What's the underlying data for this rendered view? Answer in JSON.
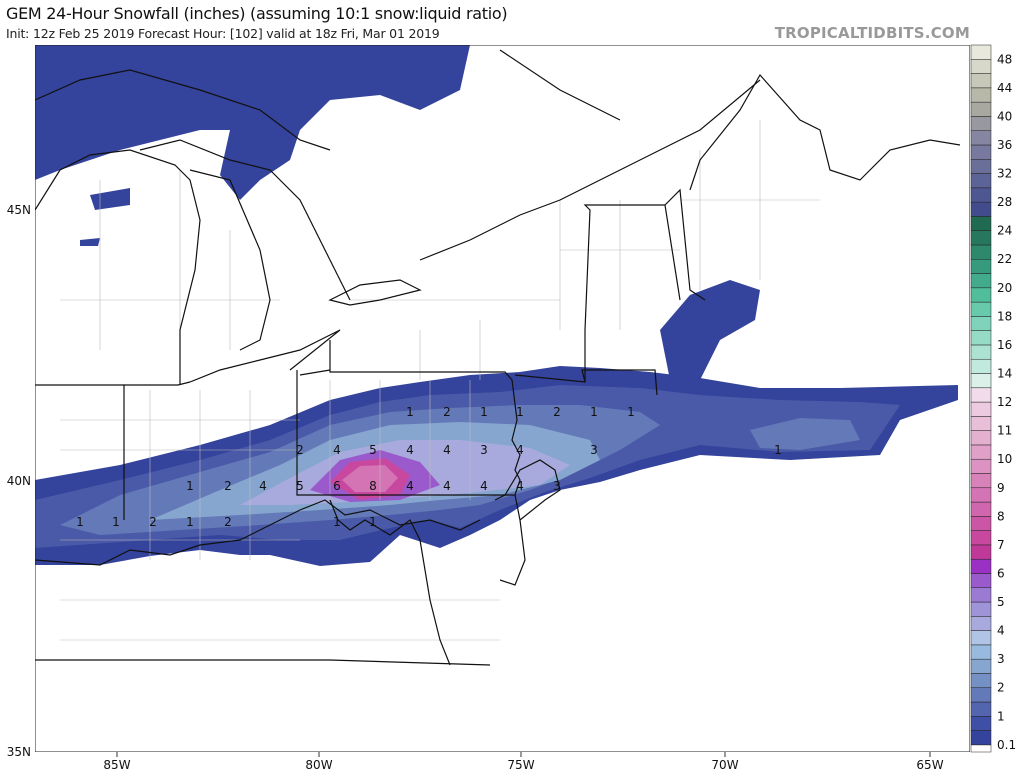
{
  "header": {
    "title": "GEM 24-Hour Snowfall (inches) (assuming 10:1 snow:liquid ratio)",
    "subtitle": "Init: 12z Feb 25 2019   Forecast Hour: [102]   valid at 18z Fri, Mar 01 2019",
    "brand": "TROPICALTIDBITS.COM"
  },
  "axes": {
    "longitude_labels": [
      "85W",
      "80W",
      "75W",
      "70W",
      "65W"
    ],
    "latitude_labels": [
      "45N",
      "40N",
      "35N"
    ]
  },
  "colorbar": {
    "labels": [
      "0.1",
      "1",
      "2",
      "3",
      "4",
      "5",
      "6",
      "7",
      "8",
      "9",
      "10",
      "11",
      "12",
      "14",
      "16",
      "18",
      "20",
      "22",
      "24",
      "28",
      "32",
      "36",
      "40",
      "44",
      "48"
    ],
    "colors": [
      "#34439b",
      "#3f4fa5",
      "#5265ae",
      "#6379b8",
      "#7490c4",
      "#86a6d0",
      "#98bade",
      "#b0c4e6",
      "#a8aadd",
      "#a094d8",
      "#9a7ad3",
      "#9a5acb",
      "#9b30c4",
      "#bf3a98",
      "#c8489f",
      "#cc56a6",
      "#d066ae",
      "#d474b4",
      "#d882ba",
      "#dc92c2",
      "#e0a0c8",
      "#e4b0d0",
      "#e8bed8",
      "#eccae0",
      "#f2dcec",
      "#daf0e8",
      "#c2e9dd",
      "#acE2d2",
      "#96dbc6",
      "#7ed3ba",
      "#66caab",
      "#50bd9b",
      "#42ab8b",
      "#369a7c",
      "#2d886c",
      "#27775e",
      "#216a52",
      "#424c8c",
      "#4e5792",
      "#5c6396",
      "#6a6f9a",
      "#78799e",
      "#8686a2",
      "#9898a0",
      "#a8a89f",
      "#b8b8a8",
      "#c8c8b8",
      "#d8d8ca",
      "#e8e8dc"
    ]
  },
  "contour_labels": [
    [
      "1",
      "2",
      "1",
      "1",
      "2",
      "1",
      "1"
    ],
    [
      "2",
      "4",
      "5",
      "4",
      "4",
      "3",
      "4",
      "3",
      "1"
    ],
    [
      "1",
      "2",
      "4",
      "5",
      "6",
      "8",
      "4",
      "4",
      "4",
      "4",
      "3"
    ],
    [
      "1",
      "1",
      "2",
      "1",
      "2",
      "1",
      "1"
    ]
  ],
  "snow_colors": [
    "#34439b",
    "#4a5aa8",
    "#6379b8",
    "#86a6d0",
    "#a8aadd",
    "#9a5acb",
    "#c8489f",
    "#d474b4"
  ]
}
